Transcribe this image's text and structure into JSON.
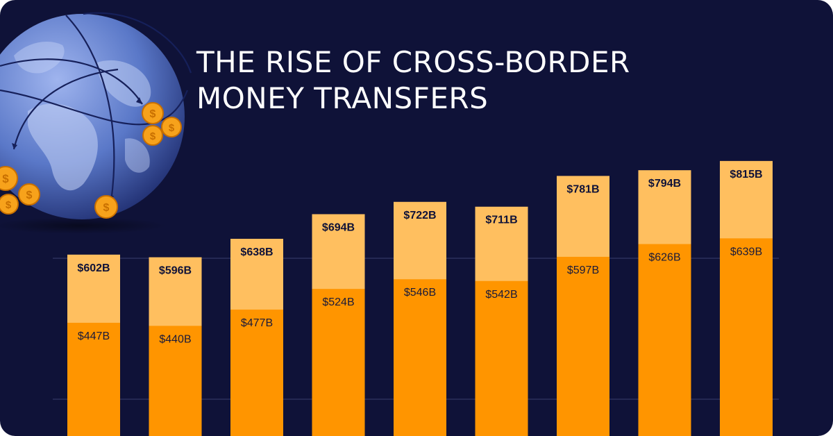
{
  "title": {
    "line1": "THE RISE OF CROSS-BORDER",
    "line2": "MONEY TRANSFERS"
  },
  "colors": {
    "background": "#0f1238",
    "total_bar": "#ffbf5f",
    "base_bar": "#ff9500",
    "gridline": "#3a3f6e",
    "globe": "#5a78c8",
    "coin": "#f7a21b"
  },
  "icons": {
    "globe": "globe-with-money-transfer-arrows-icon",
    "coin": "dollar-coin-icon"
  },
  "chart_data": {
    "type": "bar",
    "stacked": false,
    "overlay": true,
    "grid": true,
    "ylim": [
      0,
      850
    ],
    "series": [
      {
        "values": [
          602,
          596,
          638,
          694,
          722,
          711,
          781,
          794,
          815
        ],
        "labels": [
          "$602B",
          "$596B",
          "$638B",
          "$694B",
          "$722B",
          "$711B",
          "$781B",
          "$794B",
          "$815B"
        ]
      },
      {
        "values": [
          447,
          440,
          477,
          524,
          546,
          542,
          597,
          626,
          639
        ],
        "labels": [
          "$447B",
          "$440B",
          "$477B",
          "$524B",
          "$546B",
          "$542B",
          "$597B",
          "$626B",
          "$639B"
        ]
      }
    ]
  }
}
